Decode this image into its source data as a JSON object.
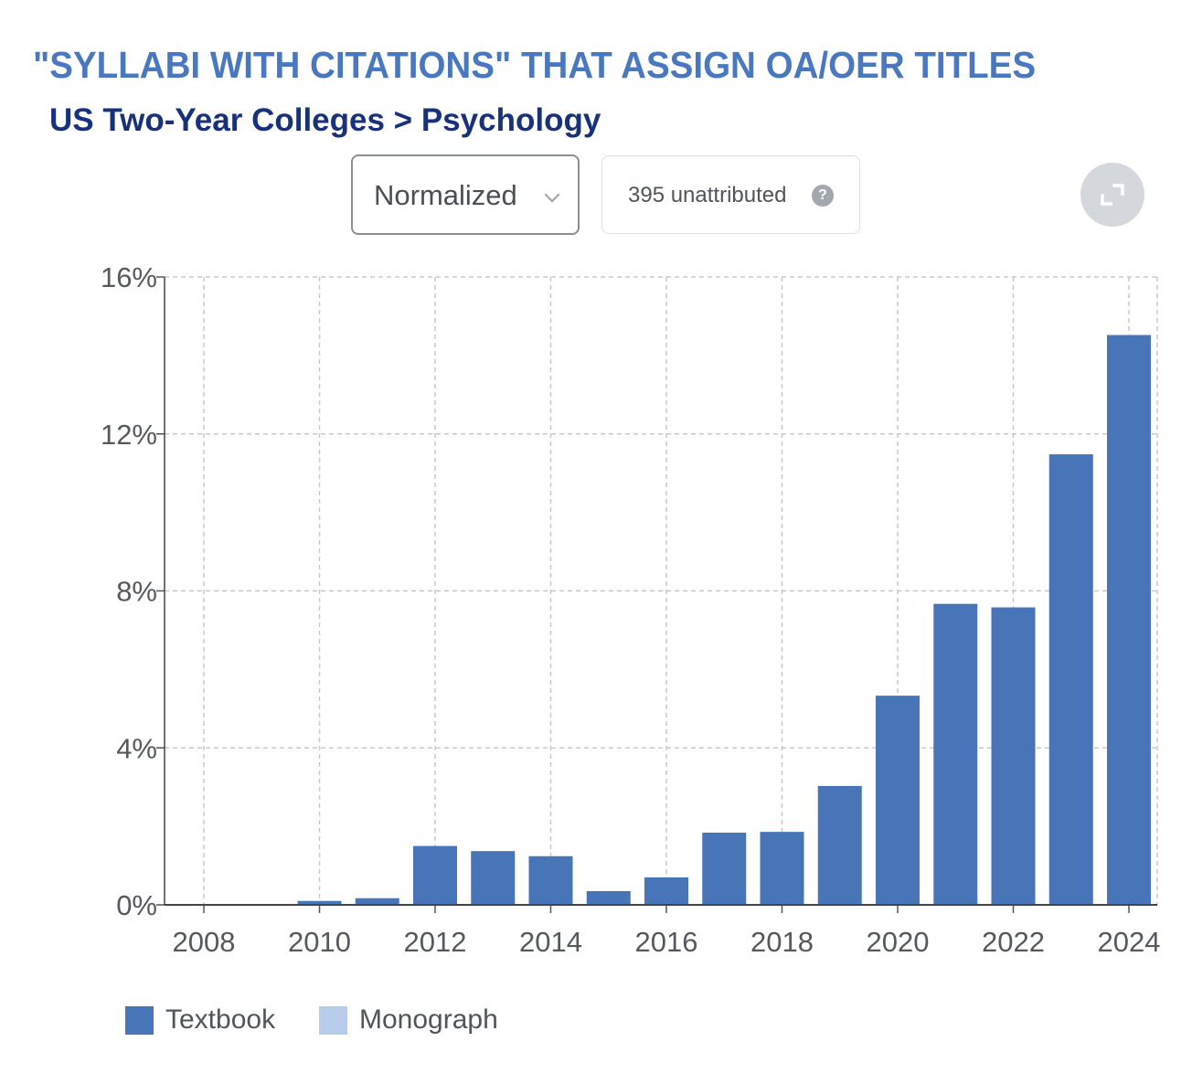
{
  "header": {
    "title": "\"SYLLABI WITH CITATIONS\" THAT ASSIGN OA/OER TITLES",
    "subtitle": "US Two-Year Colleges > Psychology"
  },
  "controls": {
    "mode_value": "Normalized",
    "unattributed_label": "395 unattributed",
    "help_icon": "question-circle-icon",
    "help_glyph": "?",
    "expand_icon": "expand-icon"
  },
  "colors": {
    "title": "#4a78c0",
    "subtitle": "#17317a",
    "textbook": "#4874b8",
    "monograph": "#b8cdec",
    "grid": "#c8c8c8"
  },
  "chart_data": {
    "type": "bar",
    "stacked": true,
    "x": [
      2008,
      2009,
      2010,
      2011,
      2012,
      2013,
      2014,
      2015,
      2016,
      2017,
      2018,
      2019,
      2020,
      2021,
      2022,
      2023,
      2024
    ],
    "x_ticks": [
      "2008",
      "2010",
      "2012",
      "2014",
      "2016",
      "2018",
      "2020",
      "2022",
      "2024"
    ],
    "series": [
      {
        "name": "Textbook",
        "color": "#4874b8",
        "values": [
          0.0,
          0.0,
          0.1,
          0.17,
          1.5,
          1.37,
          1.24,
          0.35,
          0.7,
          1.84,
          1.86,
          3.03,
          5.33,
          7.67,
          7.58,
          11.48,
          14.52
        ]
      },
      {
        "name": "Monograph",
        "color": "#b8cdec",
        "values": [
          0,
          0,
          0,
          0,
          0,
          0,
          0,
          0,
          0,
          0,
          0,
          0,
          0,
          0,
          0,
          0,
          0
        ]
      }
    ],
    "y_ticks": [
      "0%",
      "4%",
      "8%",
      "12%",
      "16%"
    ],
    "ylim": [
      0,
      16
    ],
    "y_unit": "%",
    "grid": true,
    "legend_position": "bottom-left"
  }
}
